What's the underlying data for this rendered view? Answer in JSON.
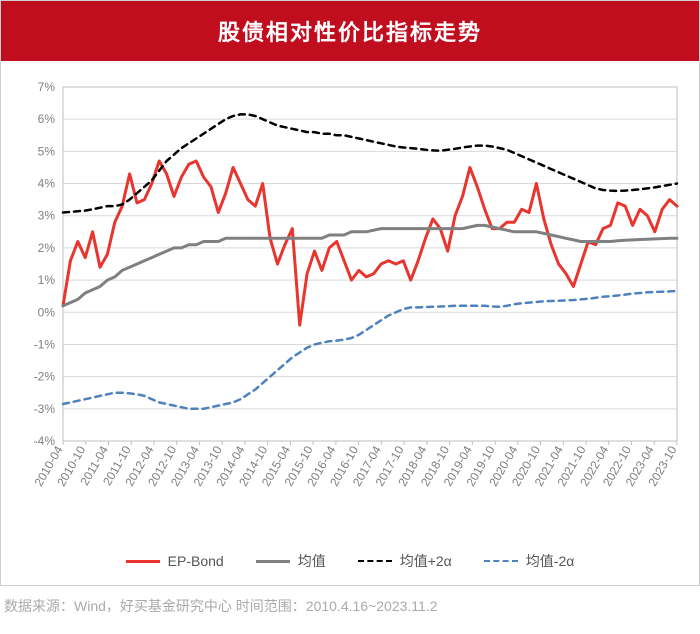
{
  "title": "股债相对性价比指标走势",
  "title_bg": "#c10e1f",
  "title_color": "#ffffff",
  "title_fontsize": 22,
  "footer": "数据来源：Wind，好买基金研究中心    时间范围：2010.4.16~2023.11.2",
  "chart": {
    "type": "line",
    "background_color": "#ffffff",
    "plot_border_color": "#bfbfbf",
    "grid_color": "#d9d9d9",
    "axis_label_color": "#808080",
    "axis_fontsize": 12,
    "y": {
      "min": -4,
      "max": 7,
      "ticks": [
        -4,
        -3,
        -2,
        -1,
        0,
        1,
        2,
        3,
        4,
        5,
        6,
        7
      ],
      "format_suffix": "%"
    },
    "x": {
      "labels": [
        "2010-04",
        "2010-10",
        "2011-04",
        "2011-10",
        "2012-04",
        "2012-10",
        "2013-04",
        "2013-10",
        "2014-04",
        "2014-10",
        "2015-04",
        "2015-10",
        "2016-04",
        "2016-10",
        "2017-04",
        "2017-10",
        "2018-04",
        "2018-10",
        "2019-04",
        "2019-10",
        "2020-04",
        "2020-10",
        "2021-04",
        "2021-10",
        "2022-04",
        "2022-10",
        "2023-04",
        "2023-10"
      ],
      "rotate": -60
    },
    "series": [
      {
        "name": "EP-Bond",
        "color": "#e8352e",
        "width": 3,
        "dash": "none",
        "data": [
          0.2,
          1.6,
          2.2,
          1.7,
          2.5,
          1.4,
          1.8,
          2.8,
          3.3,
          4.3,
          3.4,
          3.5,
          4.0,
          4.7,
          4.3,
          3.6,
          4.2,
          4.6,
          4.7,
          4.2,
          3.9,
          3.1,
          3.7,
          4.5,
          4.0,
          3.5,
          3.3,
          4.0,
          2.3,
          1.5,
          2.1,
          2.6,
          -0.4,
          1.2,
          1.9,
          1.3,
          2.0,
          2.2,
          1.6,
          1.0,
          1.3,
          1.1,
          1.2,
          1.5,
          1.6,
          1.5,
          1.6,
          1.0,
          1.6,
          2.3,
          2.9,
          2.6,
          1.9,
          3.0,
          3.6,
          4.5,
          3.9,
          3.2,
          2.6,
          2.6,
          2.8,
          2.8,
          3.2,
          3.1,
          4.0,
          2.9,
          2.1,
          1.5,
          1.2,
          0.8,
          1.5,
          2.2,
          2.1,
          2.6,
          2.7,
          3.4,
          3.3,
          2.7,
          3.2,
          3.0,
          2.5,
          3.2,
          3.5,
          3.3
        ]
      },
      {
        "name": "均值",
        "color": "#808080",
        "width": 3,
        "dash": "none",
        "data": [
          0.2,
          0.3,
          0.4,
          0.6,
          0.7,
          0.8,
          1.0,
          1.1,
          1.3,
          1.4,
          1.5,
          1.6,
          1.7,
          1.8,
          1.9,
          2.0,
          2.0,
          2.1,
          2.1,
          2.2,
          2.2,
          2.2,
          2.3,
          2.3,
          2.3,
          2.3,
          2.3,
          2.3,
          2.3,
          2.3,
          2.3,
          2.3,
          2.3,
          2.3,
          2.3,
          2.3,
          2.4,
          2.4,
          2.4,
          2.5,
          2.5,
          2.5,
          2.55,
          2.6,
          2.6,
          2.6,
          2.6,
          2.6,
          2.6,
          2.6,
          2.6,
          2.6,
          2.6,
          2.6,
          2.6,
          2.65,
          2.7,
          2.7,
          2.65,
          2.6,
          2.55,
          2.5,
          2.5,
          2.5,
          2.5,
          2.45,
          2.4,
          2.35,
          2.3,
          2.25,
          2.2,
          2.2,
          2.2,
          2.2,
          2.2,
          2.22,
          2.24,
          2.25,
          2.26,
          2.27,
          2.28,
          2.29,
          2.3,
          2.3
        ]
      },
      {
        "name": "均值+2α",
        "color": "#000000",
        "width": 2.5,
        "dash": "6,5",
        "data": [
          3.1,
          3.12,
          3.14,
          3.16,
          3.2,
          3.25,
          3.3,
          3.3,
          3.35,
          3.5,
          3.7,
          3.9,
          4.1,
          4.4,
          4.7,
          4.9,
          5.1,
          5.25,
          5.4,
          5.55,
          5.7,
          5.85,
          6.0,
          6.1,
          6.15,
          6.15,
          6.1,
          6.0,
          5.9,
          5.8,
          5.75,
          5.7,
          5.65,
          5.6,
          5.6,
          5.55,
          5.55,
          5.5,
          5.5,
          5.45,
          5.4,
          5.35,
          5.3,
          5.25,
          5.2,
          5.15,
          5.12,
          5.1,
          5.08,
          5.05,
          5.03,
          5.02,
          5.05,
          5.08,
          5.12,
          5.15,
          5.18,
          5.18,
          5.15,
          5.1,
          5.05,
          4.95,
          4.85,
          4.75,
          4.65,
          4.55,
          4.45,
          4.35,
          4.25,
          4.15,
          4.05,
          3.95,
          3.85,
          3.8,
          3.78,
          3.77,
          3.78,
          3.8,
          3.82,
          3.85,
          3.88,
          3.92,
          3.96,
          4.0
        ]
      },
      {
        "name": "均值-2α",
        "color": "#4f81bd",
        "width": 2.5,
        "dash": "6,5",
        "data": [
          -2.85,
          -2.8,
          -2.75,
          -2.7,
          -2.65,
          -2.6,
          -2.55,
          -2.5,
          -2.5,
          -2.52,
          -2.55,
          -2.6,
          -2.7,
          -2.8,
          -2.85,
          -2.9,
          -2.95,
          -3.0,
          -3.0,
          -3.0,
          -2.95,
          -2.9,
          -2.85,
          -2.8,
          -2.7,
          -2.55,
          -2.4,
          -2.2,
          -2.0,
          -1.8,
          -1.6,
          -1.4,
          -1.25,
          -1.1,
          -1.0,
          -0.95,
          -0.9,
          -0.88,
          -0.85,
          -0.8,
          -0.7,
          -0.55,
          -0.4,
          -0.25,
          -0.1,
          0.0,
          0.1,
          0.15,
          0.15,
          0.16,
          0.17,
          0.18,
          0.19,
          0.2,
          0.2,
          0.2,
          0.2,
          0.2,
          0.18,
          0.17,
          0.2,
          0.25,
          0.28,
          0.3,
          0.32,
          0.34,
          0.35,
          0.36,
          0.37,
          0.38,
          0.4,
          0.42,
          0.45,
          0.48,
          0.5,
          0.52,
          0.55,
          0.58,
          0.6,
          0.62,
          0.63,
          0.64,
          0.65,
          0.66
        ]
      }
    ],
    "legend": {
      "position": "bottom",
      "items": [
        "EP-Bond",
        "均值",
        "均值+2α",
        "均值-2α"
      ]
    }
  }
}
